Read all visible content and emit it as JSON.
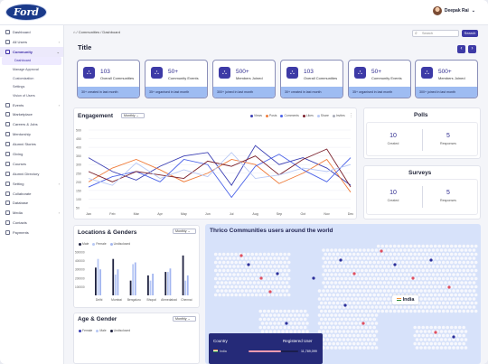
{
  "header": {
    "logo_text": "Ford",
    "user_name": "Deepak Rai",
    "chevron": "⌄"
  },
  "sidebar": {
    "items": [
      {
        "label": "Dashboard",
        "chevron": ""
      },
      {
        "label": "All Users",
        "chevron": "›"
      },
      {
        "label": "Community",
        "chevron": "⌄"
      }
    ],
    "subitems": [
      "Dashboard",
      "Manage Approval",
      "Customization",
      "Settings",
      "Vision of Users"
    ],
    "items2": [
      {
        "label": "Events",
        "chevron": "›"
      },
      {
        "label": "Marketplace",
        "chevron": ""
      },
      {
        "label": "Careers & Jobs",
        "chevron": ""
      },
      {
        "label": "Mentorship",
        "chevron": ""
      },
      {
        "label": "Alumni Stories",
        "chevron": ""
      },
      {
        "label": "Giving",
        "chevron": ""
      },
      {
        "label": "Courses",
        "chevron": ""
      },
      {
        "label": "Alumni Directory",
        "chevron": ""
      },
      {
        "label": "Setting",
        "chevron": "›"
      },
      {
        "label": "Collaborate",
        "chevron": ""
      },
      {
        "label": "Database",
        "chevron": ""
      },
      {
        "label": "Media",
        "chevron": "›"
      },
      {
        "label": "Contacts",
        "chevron": ""
      },
      {
        "label": "Payments",
        "chevron": ""
      }
    ]
  },
  "breadcrumb": "⌂ / Communities / Dashboard",
  "search": {
    "placeholder": "Search",
    "button": "Search"
  },
  "title": "Title",
  "arrows": {
    "prev": "‹",
    "next": "›"
  },
  "cards": [
    {
      "value": "103",
      "label": "Overall Communities",
      "footer": "30+ created in last month",
      "icon": "⛬"
    },
    {
      "value": "50+",
      "label": "Community Events",
      "footer": "35+ organised in last month",
      "icon": "⛬"
    },
    {
      "value": "500+",
      "label": "Members Joined",
      "footer": "300+ joined in last month",
      "icon": "⛬"
    },
    {
      "value": "103",
      "label": "Overall Communities",
      "footer": "30+ created in last month",
      "icon": "⛬"
    },
    {
      "value": "50+",
      "label": "Community Events",
      "footer": "35+ organised in last month",
      "icon": "⛬"
    },
    {
      "value": "500+",
      "label": "Members Joined",
      "footer": "300+ joined in last month",
      "icon": "⛬"
    }
  ],
  "engagement": {
    "title": "Engagement",
    "range": "Monthly",
    "legend": [
      "Views",
      "Posts",
      "Comments",
      "Likes",
      "Share",
      "Invites"
    ],
    "colors": {
      "Views": "#3b3fb3",
      "Posts": "#f07c3a",
      "Comments": "#4a62e8",
      "Likes": "#7a1f2a",
      "Share": "#b7c8f5",
      "Invites": "#a9acb8"
    }
  },
  "chart_data": {
    "type": "line",
    "categories": [
      "Jan",
      "Feb",
      "Mar",
      "Apr",
      "May",
      "Jun",
      "Jul",
      "Aug",
      "Sep",
      "Oct",
      "Nov",
      "Dec"
    ],
    "ylabels": [
      "500",
      "450",
      "400",
      "350",
      "300",
      "250",
      "200",
      "150",
      "100",
      "50"
    ],
    "ylim": [
      50,
      500
    ],
    "series": [
      {
        "name": "Views",
        "values": [
          340,
          260,
          210,
          290,
          350,
          370,
          180,
          410,
          300,
          340,
          280,
          180
        ]
      },
      {
        "name": "Posts",
        "values": [
          200,
          280,
          330,
          270,
          200,
          250,
          330,
          300,
          190,
          250,
          330,
          140
        ]
      },
      {
        "name": "Comments",
        "values": [
          170,
          230,
          260,
          200,
          330,
          300,
          110,
          290,
          360,
          270,
          200,
          340
        ]
      },
      {
        "name": "Likes",
        "values": [
          260,
          200,
          260,
          240,
          220,
          320,
          290,
          350,
          240,
          330,
          390,
          170
        ]
      },
      {
        "name": "Share",
        "values": [
          220,
          180,
          310,
          220,
          270,
          230,
          370,
          220,
          240,
          280,
          260,
          300
        ]
      }
    ]
  },
  "polls": {
    "title": "Polls",
    "created": "10",
    "created_label": "Created",
    "responses": "5",
    "responses_label": "Responses"
  },
  "surveys": {
    "title": "Surveys",
    "created": "10",
    "created_label": "Created",
    "responses": "5",
    "responses_label": "Responses"
  },
  "locations": {
    "title": "Locations & Genders",
    "range": "Monthly",
    "legend": [
      "Male",
      "Female",
      "Undisclosed"
    ],
    "ylabels": [
      "500000",
      "400000",
      "300000",
      "200000",
      "100000"
    ],
    "cities": [
      "Delhi",
      "Mumbai",
      "Bengaluru",
      "Bhopal",
      "Ahmedabad",
      "Chennai"
    ]
  },
  "location_chart": {
    "type": "bar",
    "categories": [
      "Delhi",
      "Mumbai",
      "Bengaluru",
      "Bhopal",
      "Ahmedabad",
      "Chennai"
    ],
    "series": [
      {
        "name": "Male",
        "values": [
          320000,
          420000,
          170000,
          230000,
          270000,
          460000
        ]
      },
      {
        "name": "Female",
        "values": [
          420000,
          240000,
          360000,
          170000,
          270000,
          170000
        ]
      },
      {
        "name": "Undisclosed",
        "values": [
          300000,
          300000,
          380000,
          250000,
          310000,
          230000
        ]
      }
    ],
    "ylim": [
      0,
      500000
    ],
    "colors": [
      "#1f2240",
      "#b7c8f5",
      "#a3b6f0"
    ]
  },
  "age": {
    "title": "Age & Gender",
    "range": "Monthly",
    "legend": [
      "Female",
      "Male",
      "Undisclosed"
    ]
  },
  "map": {
    "title": "Thrico Communities users around the world",
    "highlight": "India",
    "table_country": "Country",
    "table_users": "Registered User",
    "row_country": "India",
    "row_value": "11,789,099",
    "row_fraction": 0.65
  }
}
